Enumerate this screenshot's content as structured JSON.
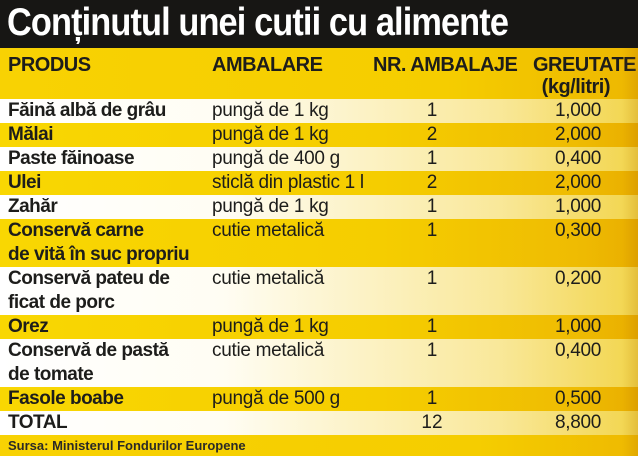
{
  "title": "Conținutul unei cutii cu alimente",
  "header": {
    "produs": "PRODUS",
    "ambalare": "AMBALARE",
    "nr_ambalaje": "NR. AMBALAJE",
    "greutate": "GREUTATE",
    "greutate_unit": "(kg/litri)"
  },
  "source": "Sursa: Ministerul Fondurilor Europene",
  "colors": {
    "title_bg": "#171614",
    "title_text": "#ffffff",
    "yellow": "#f5cd00",
    "yellow_deep": "#e9ae00",
    "row_white": "#ffffff",
    "text": "#1d1d1b"
  },
  "chart_data": {
    "type": "table",
    "title": "Conținutul unei cutii cu alimente",
    "columns": [
      "PRODUS",
      "AMBALARE",
      "NR. AMBALAJE",
      "GREUTATE (kg/litri)"
    ],
    "rows": [
      [
        "Făină albă de grâu",
        "pungă de 1 kg",
        "1",
        "1,000"
      ],
      [
        "Mălai",
        "pungă de 1 kg",
        "2",
        "2,000"
      ],
      [
        "Paste făinoase",
        "pungă de 400 g",
        "1",
        "0,400"
      ],
      [
        "Ulei",
        "sticlă din plastic 1 l",
        "2",
        "2,000"
      ],
      [
        "Zahăr",
        "pungă de 1 kg",
        "1",
        "1,000"
      ],
      [
        "Conservă carne\nde vită în suc propriu",
        "cutie metalică",
        "1",
        "0,300"
      ],
      [
        "Conservă pateu de\nficat de porc",
        "cutie metalică",
        "1",
        "0,200"
      ],
      [
        "Orez",
        "pungă de 1 kg",
        "1",
        "1,000"
      ],
      [
        "Conservă de pastă\nde tomate",
        "cutie metalică",
        "1",
        "0,400"
      ],
      [
        "Fasole boabe",
        "pungă de 500 g",
        "1",
        "0,500"
      ],
      [
        "TOTAL",
        "",
        "12",
        "8,800"
      ]
    ],
    "source": "Sursa: Ministerul Fondurilor Europene"
  }
}
